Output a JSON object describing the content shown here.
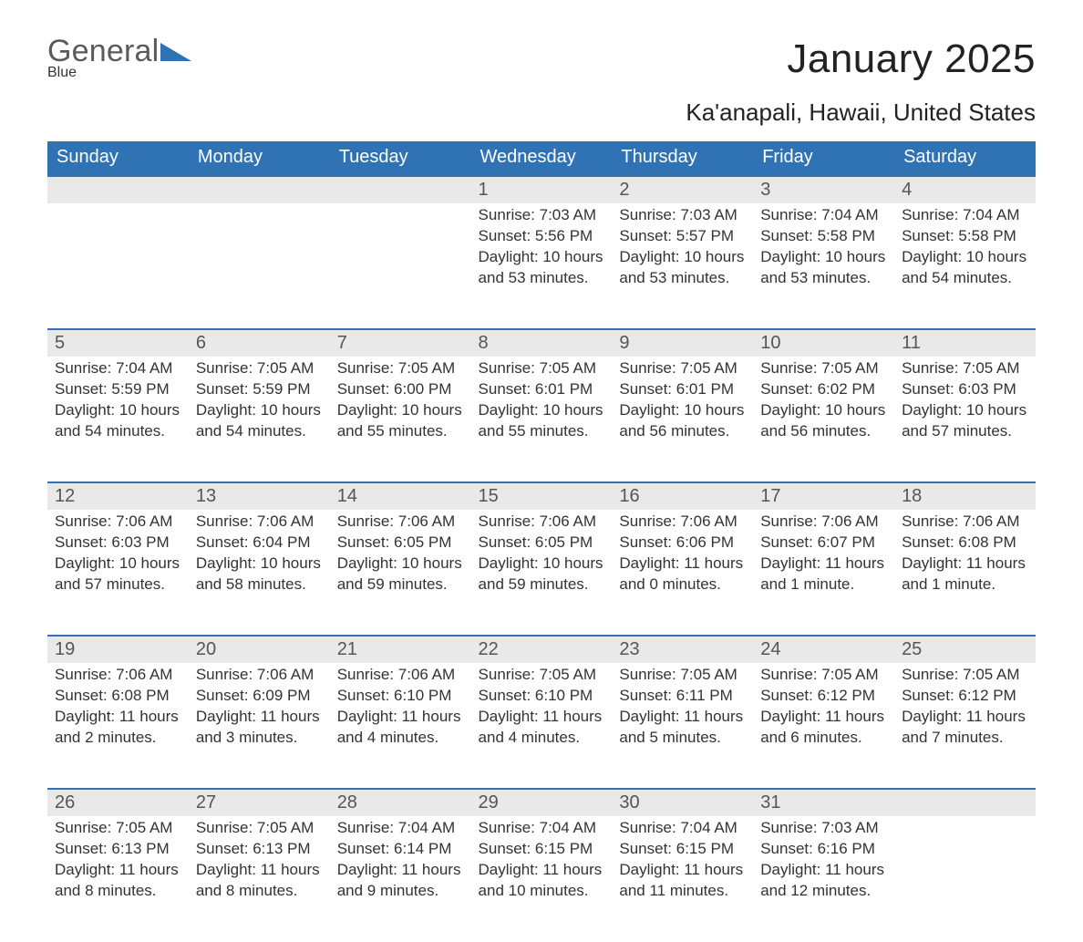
{
  "brand": {
    "word1": "General",
    "word2": "Blue"
  },
  "title": "January 2025",
  "location": "Ka'anapali, Hawaii, United States",
  "colors": {
    "header_bg": "#2f73b5",
    "header_text": "#ffffff",
    "daynum_bg": "#e9e9e9",
    "daynum_text": "#555555",
    "border": "#2f73b5",
    "body_text": "#333333",
    "brand_gray": "#5a5a5a",
    "brand_blue": "#2e72b4",
    "background": "#ffffff"
  },
  "typography": {
    "title_fontsize_pt": 33,
    "location_fontsize_pt": 20,
    "header_fontsize_pt": 15,
    "daynum_fontsize_pt": 15,
    "body_fontsize_pt": 13
  },
  "columns": [
    "Sunday",
    "Monday",
    "Tuesday",
    "Wednesday",
    "Thursday",
    "Friday",
    "Saturday"
  ],
  "weeks": [
    [
      null,
      null,
      null,
      {
        "n": "1",
        "sr": "Sunrise: 7:03 AM",
        "ss": "Sunset: 5:56 PM",
        "d1": "Daylight: 10 hours",
        "d2": "and 53 minutes."
      },
      {
        "n": "2",
        "sr": "Sunrise: 7:03 AM",
        "ss": "Sunset: 5:57 PM",
        "d1": "Daylight: 10 hours",
        "d2": "and 53 minutes."
      },
      {
        "n": "3",
        "sr": "Sunrise: 7:04 AM",
        "ss": "Sunset: 5:58 PM",
        "d1": "Daylight: 10 hours",
        "d2": "and 53 minutes."
      },
      {
        "n": "4",
        "sr": "Sunrise: 7:04 AM",
        "ss": "Sunset: 5:58 PM",
        "d1": "Daylight: 10 hours",
        "d2": "and 54 minutes."
      }
    ],
    [
      {
        "n": "5",
        "sr": "Sunrise: 7:04 AM",
        "ss": "Sunset: 5:59 PM",
        "d1": "Daylight: 10 hours",
        "d2": "and 54 minutes."
      },
      {
        "n": "6",
        "sr": "Sunrise: 7:05 AM",
        "ss": "Sunset: 5:59 PM",
        "d1": "Daylight: 10 hours",
        "d2": "and 54 minutes."
      },
      {
        "n": "7",
        "sr": "Sunrise: 7:05 AM",
        "ss": "Sunset: 6:00 PM",
        "d1": "Daylight: 10 hours",
        "d2": "and 55 minutes."
      },
      {
        "n": "8",
        "sr": "Sunrise: 7:05 AM",
        "ss": "Sunset: 6:01 PM",
        "d1": "Daylight: 10 hours",
        "d2": "and 55 minutes."
      },
      {
        "n": "9",
        "sr": "Sunrise: 7:05 AM",
        "ss": "Sunset: 6:01 PM",
        "d1": "Daylight: 10 hours",
        "d2": "and 56 minutes."
      },
      {
        "n": "10",
        "sr": "Sunrise: 7:05 AM",
        "ss": "Sunset: 6:02 PM",
        "d1": "Daylight: 10 hours",
        "d2": "and 56 minutes."
      },
      {
        "n": "11",
        "sr": "Sunrise: 7:05 AM",
        "ss": "Sunset: 6:03 PM",
        "d1": "Daylight: 10 hours",
        "d2": "and 57 minutes."
      }
    ],
    [
      {
        "n": "12",
        "sr": "Sunrise: 7:06 AM",
        "ss": "Sunset: 6:03 PM",
        "d1": "Daylight: 10 hours",
        "d2": "and 57 minutes."
      },
      {
        "n": "13",
        "sr": "Sunrise: 7:06 AM",
        "ss": "Sunset: 6:04 PM",
        "d1": "Daylight: 10 hours",
        "d2": "and 58 minutes."
      },
      {
        "n": "14",
        "sr": "Sunrise: 7:06 AM",
        "ss": "Sunset: 6:05 PM",
        "d1": "Daylight: 10 hours",
        "d2": "and 59 minutes."
      },
      {
        "n": "15",
        "sr": "Sunrise: 7:06 AM",
        "ss": "Sunset: 6:05 PM",
        "d1": "Daylight: 10 hours",
        "d2": "and 59 minutes."
      },
      {
        "n": "16",
        "sr": "Sunrise: 7:06 AM",
        "ss": "Sunset: 6:06 PM",
        "d1": "Daylight: 11 hours",
        "d2": "and 0 minutes."
      },
      {
        "n": "17",
        "sr": "Sunrise: 7:06 AM",
        "ss": "Sunset: 6:07 PM",
        "d1": "Daylight: 11 hours",
        "d2": "and 1 minute."
      },
      {
        "n": "18",
        "sr": "Sunrise: 7:06 AM",
        "ss": "Sunset: 6:08 PM",
        "d1": "Daylight: 11 hours",
        "d2": "and 1 minute."
      }
    ],
    [
      {
        "n": "19",
        "sr": "Sunrise: 7:06 AM",
        "ss": "Sunset: 6:08 PM",
        "d1": "Daylight: 11 hours",
        "d2": "and 2 minutes."
      },
      {
        "n": "20",
        "sr": "Sunrise: 7:06 AM",
        "ss": "Sunset: 6:09 PM",
        "d1": "Daylight: 11 hours",
        "d2": "and 3 minutes."
      },
      {
        "n": "21",
        "sr": "Sunrise: 7:06 AM",
        "ss": "Sunset: 6:10 PM",
        "d1": "Daylight: 11 hours",
        "d2": "and 4 minutes."
      },
      {
        "n": "22",
        "sr": "Sunrise: 7:05 AM",
        "ss": "Sunset: 6:10 PM",
        "d1": "Daylight: 11 hours",
        "d2": "and 4 minutes."
      },
      {
        "n": "23",
        "sr": "Sunrise: 7:05 AM",
        "ss": "Sunset: 6:11 PM",
        "d1": "Daylight: 11 hours",
        "d2": "and 5 minutes."
      },
      {
        "n": "24",
        "sr": "Sunrise: 7:05 AM",
        "ss": "Sunset: 6:12 PM",
        "d1": "Daylight: 11 hours",
        "d2": "and 6 minutes."
      },
      {
        "n": "25",
        "sr": "Sunrise: 7:05 AM",
        "ss": "Sunset: 6:12 PM",
        "d1": "Daylight: 11 hours",
        "d2": "and 7 minutes."
      }
    ],
    [
      {
        "n": "26",
        "sr": "Sunrise: 7:05 AM",
        "ss": "Sunset: 6:13 PM",
        "d1": "Daylight: 11 hours",
        "d2": "and 8 minutes."
      },
      {
        "n": "27",
        "sr": "Sunrise: 7:05 AM",
        "ss": "Sunset: 6:13 PM",
        "d1": "Daylight: 11 hours",
        "d2": "and 8 minutes."
      },
      {
        "n": "28",
        "sr": "Sunrise: 7:04 AM",
        "ss": "Sunset: 6:14 PM",
        "d1": "Daylight: 11 hours",
        "d2": "and 9 minutes."
      },
      {
        "n": "29",
        "sr": "Sunrise: 7:04 AM",
        "ss": "Sunset: 6:15 PM",
        "d1": "Daylight: 11 hours",
        "d2": "and 10 minutes."
      },
      {
        "n": "30",
        "sr": "Sunrise: 7:04 AM",
        "ss": "Sunset: 6:15 PM",
        "d1": "Daylight: 11 hours",
        "d2": "and 11 minutes."
      },
      {
        "n": "31",
        "sr": "Sunrise: 7:03 AM",
        "ss": "Sunset: 6:16 PM",
        "d1": "Daylight: 11 hours",
        "d2": "and 12 minutes."
      },
      null
    ]
  ]
}
